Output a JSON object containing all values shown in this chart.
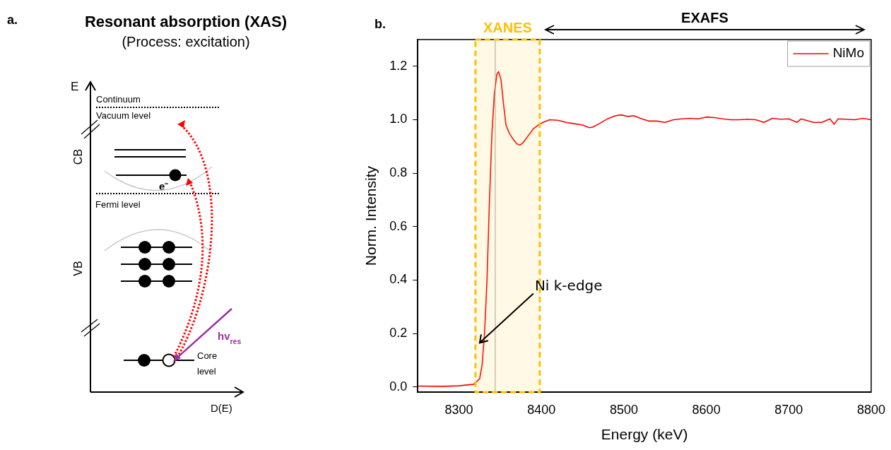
{
  "chart_data": [
    {
      "type": "other",
      "title": "Resonant absorption (XAS)",
      "subtitle": "(Process: excitation)",
      "annotations": [
        "a.",
        "E",
        "Continuum",
        "Vacuum level",
        "CB",
        "e⁻",
        "Fermi level",
        "VB",
        "hv$_{res}$",
        "Core level",
        "D(E)"
      ]
    },
    {
      "type": "line",
      "xlabel": "Energy (keV)",
      "ylabel": "Norm. Intensity",
      "xlim": [
        8250,
        8800
      ],
      "xticks": [
        8300,
        8400,
        8500,
        8600,
        8700,
        8800
      ],
      "ylim": [
        -0.02,
        1.3
      ],
      "yticks": [
        {
          "value": 0,
          "label": "0.0"
        },
        {
          "value": 0.2,
          "label": "0.2"
        },
        {
          "value": 0.4,
          "label": "0.4"
        },
        {
          "value": 0.6,
          "label": "0.6"
        },
        {
          "value": 0.8,
          "label": "0.8"
        },
        {
          "value": 1,
          "label": "1.0"
        },
        {
          "value": 1.2,
          "label": "1.2"
        }
      ],
      "legend": "top right",
      "grid": false,
      "marker": "none",
      "line_style": "solid",
      "x": [
        8250,
        8280,
        8300,
        8318,
        8325,
        8328,
        8331,
        8334,
        8337,
        8340,
        8343,
        8346,
        8348,
        8351,
        8354,
        8357,
        8361,
        8365,
        8370,
        8374,
        8378,
        8384,
        8390,
        8396,
        8402,
        8410,
        8420,
        8430,
        8440,
        8450,
        8458,
        8462,
        8470,
        8480,
        8490,
        8497,
        8505,
        8512,
        8520,
        8530,
        8540,
        8550,
        8560,
        8570,
        8580,
        8590,
        8600,
        8610,
        8620,
        8630,
        8640,
        8650,
        8660,
        8670,
        8680,
        8690,
        8700,
        8710,
        8715,
        8730,
        8740,
        8750,
        8755,
        8760,
        8780,
        8790,
        8800
      ],
      "series": [
        {
          "name": "NiMo",
          "color": "#ff0000",
          "values": [
            0.003,
            0.002,
            0.004,
            0.01,
            0.03,
            0.08,
            0.2,
            0.4,
            0.7,
            0.95,
            1.1,
            1.17,
            1.18,
            1.15,
            1.06,
            0.98,
            0.95,
            0.93,
            0.91,
            0.905,
            0.915,
            0.94,
            0.965,
            0.98,
            0.99,
            1.0,
            0.998,
            0.99,
            0.985,
            0.98,
            0.97,
            0.972,
            0.985,
            1.003,
            1.015,
            1.018,
            1.012,
            1.015,
            1.005,
            0.995,
            0.995,
            0.99,
            1.0,
            1.003,
            1.005,
            1.003,
            1.01,
            1.008,
            1.003,
            1.0,
            1.0,
            1.002,
            1.0,
            0.99,
            1.005,
            1.002,
            1.003,
            0.99,
            1.003,
            0.99,
            0.99,
            1.003,
            0.983,
            1.003,
            1.0,
            1.005,
            1.0
          ]
        }
      ],
      "ref_lines": [
        {
          "axis": "x",
          "value": 8344,
          "color": "#a0a0a0"
        }
      ],
      "bands": [
        {
          "axis": "x",
          "from": 8320,
          "to": 8398,
          "label": "XANES",
          "color": "#ffc000"
        }
      ],
      "annotations": [
        "b.",
        "EXAFS",
        "Ni k-edge"
      ]
    }
  ]
}
